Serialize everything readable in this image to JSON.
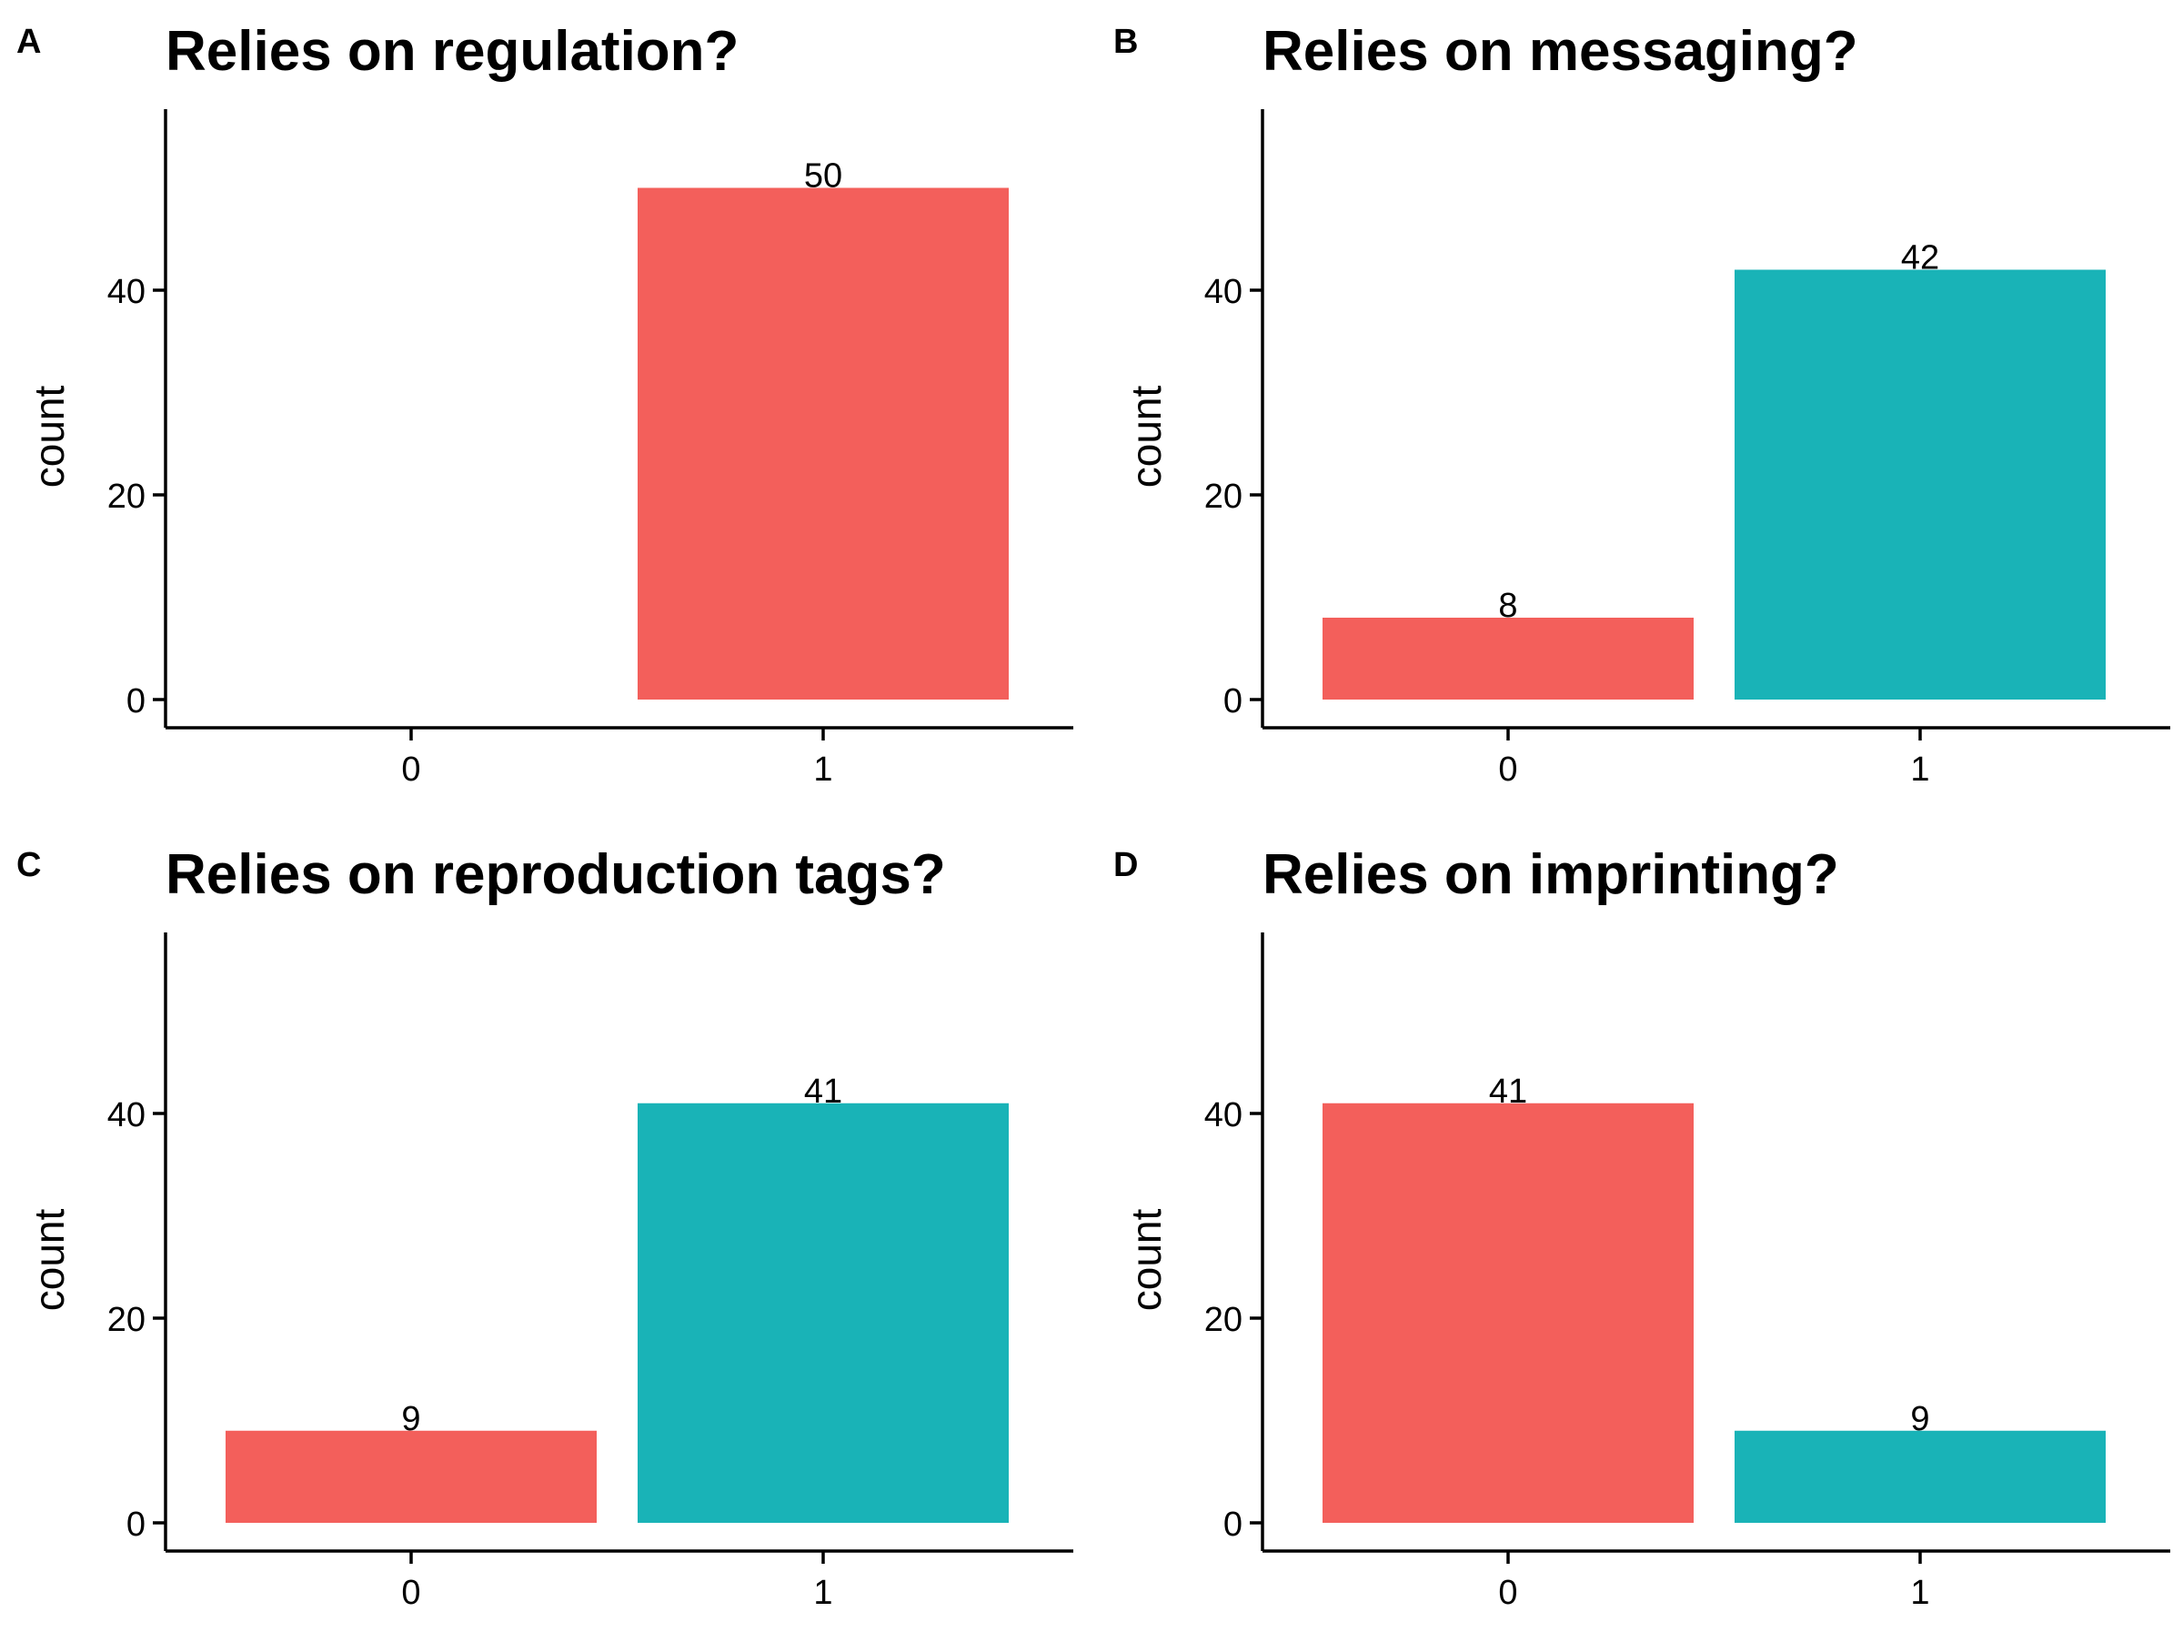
{
  "colors": {
    "category_0": "#F35F5B",
    "category_1": "#19B3B7"
  },
  "chart_data": [
    {
      "panel": "A",
      "type": "bar",
      "title": "Relies on regulation?",
      "ylabel": "count",
      "xlabel": "",
      "categories": [
        "0",
        "1"
      ],
      "values": [
        0,
        50
      ],
      "data_labels": [
        "",
        "50"
      ],
      "colors": [
        "#F35F5B",
        "#F35F5B"
      ],
      "ylim": [
        0,
        57.4
      ],
      "yticks": [
        0,
        20,
        40
      ],
      "grid": false,
      "legend": "none"
    },
    {
      "panel": "B",
      "type": "bar",
      "title": "Relies on messaging?",
      "ylabel": "count",
      "xlabel": "",
      "categories": [
        "0",
        "1"
      ],
      "values": [
        8,
        42
      ],
      "data_labels": [
        "8",
        "42"
      ],
      "colors": [
        "#F35F5B",
        "#19B3B7"
      ],
      "ylim": [
        0,
        57.4
      ],
      "yticks": [
        0,
        20,
        40
      ],
      "grid": false,
      "legend": "none"
    },
    {
      "panel": "C",
      "type": "bar",
      "title": "Relies on reproduction tags?",
      "ylabel": "count",
      "xlabel": "",
      "categories": [
        "0",
        "1"
      ],
      "values": [
        9,
        41
      ],
      "data_labels": [
        "9",
        "41"
      ],
      "colors": [
        "#F35F5B",
        "#19B3B7"
      ],
      "ylim": [
        0,
        57.4
      ],
      "yticks": [
        0,
        20,
        40
      ],
      "grid": false,
      "legend": "none"
    },
    {
      "panel": "D",
      "type": "bar",
      "title": "Relies on imprinting?",
      "ylabel": "count",
      "xlabel": "",
      "categories": [
        "0",
        "1"
      ],
      "values": [
        41,
        9
      ],
      "data_labels": [
        "41",
        "9"
      ],
      "colors": [
        "#F35F5B",
        "#19B3B7"
      ],
      "ylim": [
        0,
        57.4
      ],
      "yticks": [
        0,
        20,
        40
      ],
      "grid": false,
      "legend": "none"
    }
  ]
}
